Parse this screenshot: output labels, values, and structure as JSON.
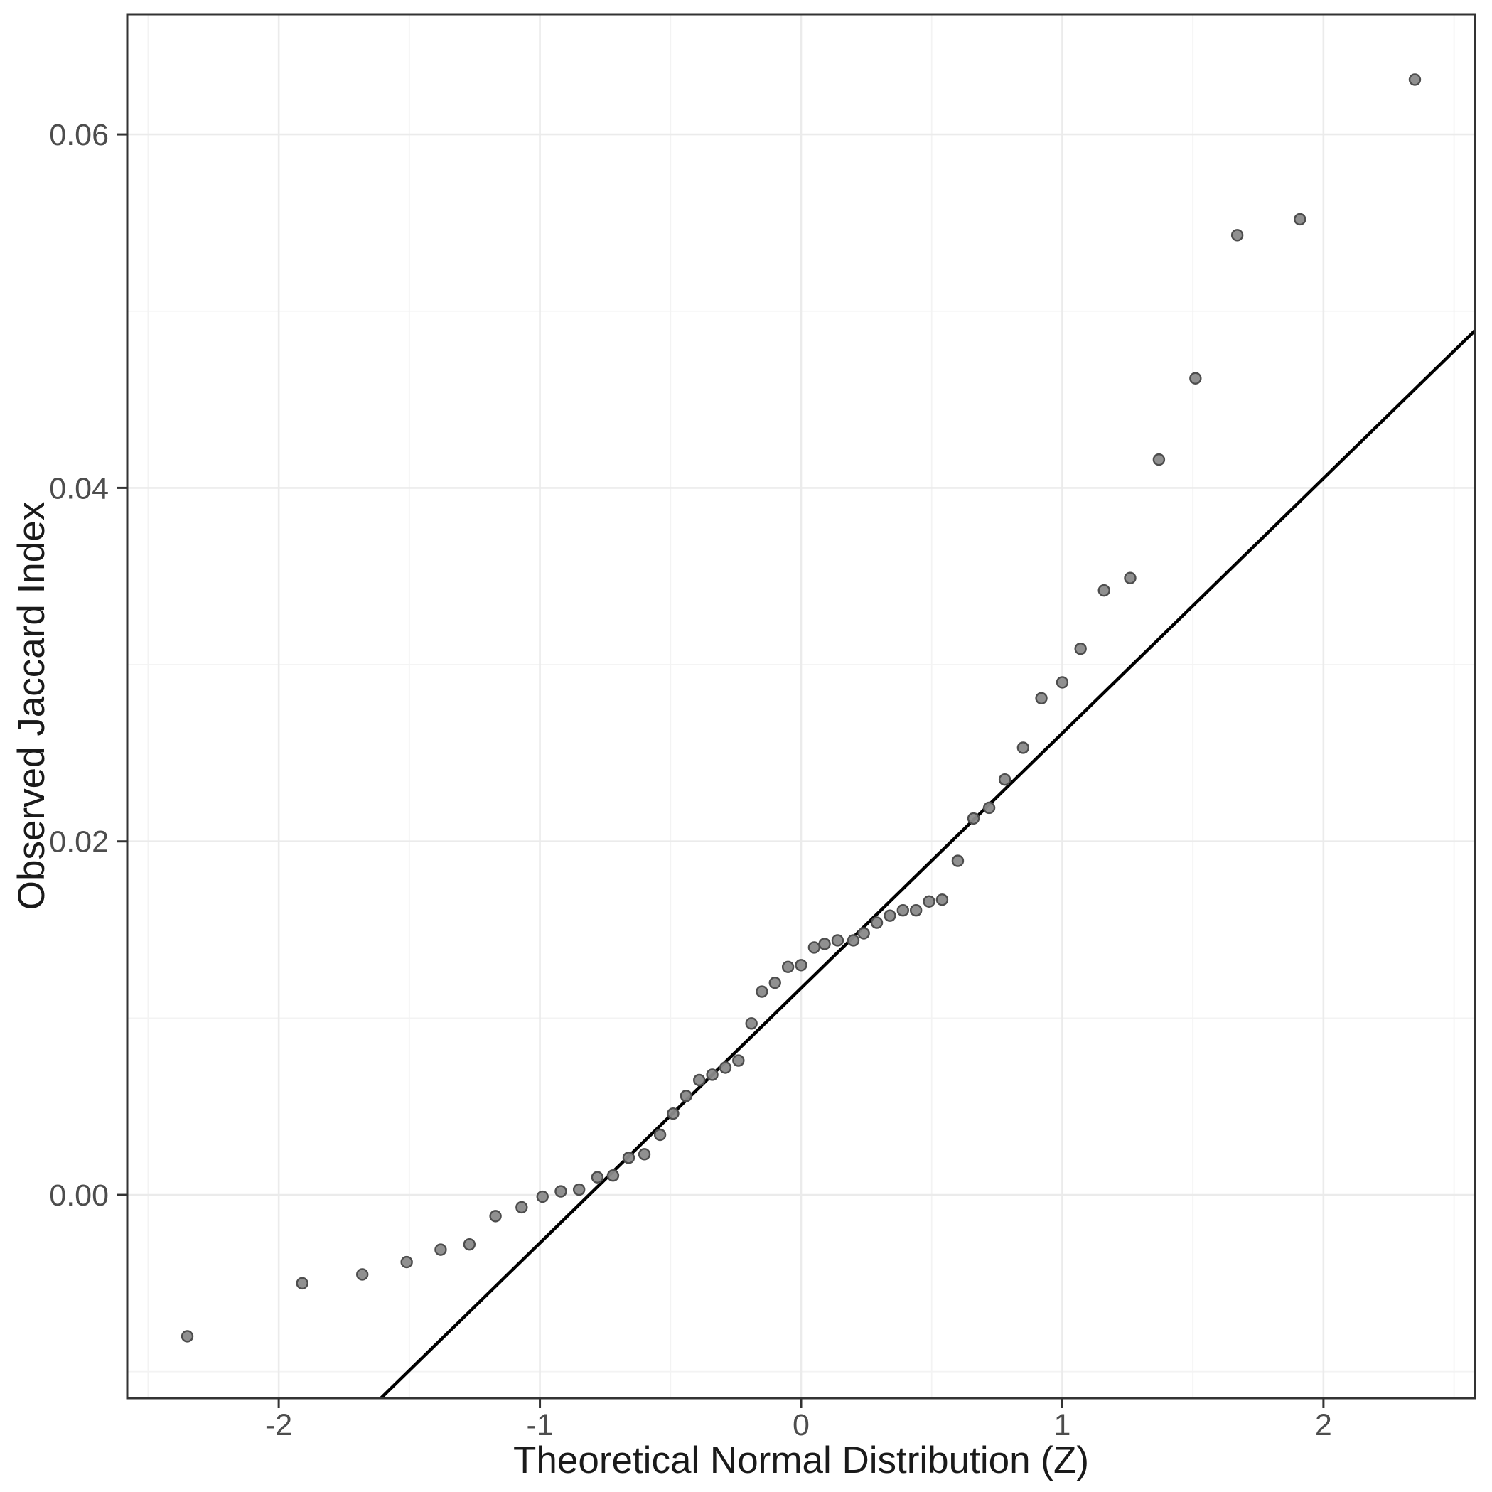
{
  "chart_data": {
    "type": "scatter",
    "title": "",
    "xlabel": "Theoretical Normal Distribution (Z)",
    "ylabel": "Observed Jaccard Index",
    "xlim": [
      -2.58,
      2.58
    ],
    "ylim": [
      -0.0115,
      0.0668
    ],
    "grid": "on",
    "legend": "none",
    "x_ticks": {
      "values": [
        -2,
        -1,
        0,
        1,
        2
      ],
      "labels": [
        "-2",
        "-1",
        "0",
        "1",
        "2"
      ]
    },
    "y_ticks": {
      "values": [
        0.0,
        0.02,
        0.04,
        0.06
      ],
      "labels": [
        "0.00",
        "0.02",
        "0.04",
        "0.06"
      ]
    },
    "x_minor_ticks": [
      -2.5,
      -1.5,
      -0.5,
      0.5,
      1.5,
      2.5
    ],
    "y_minor_ticks": [
      -0.01,
      0.01,
      0.03,
      0.05
    ],
    "series": [
      {
        "name": "observed-vs-theoretical-quantiles",
        "marker": "circle",
        "points": [
          [
            -2.35,
            -0.008
          ],
          [
            -1.91,
            -0.005
          ],
          [
            -1.68,
            -0.0045
          ],
          [
            -1.51,
            -0.0038
          ],
          [
            -1.38,
            -0.0031
          ],
          [
            -1.27,
            -0.0028
          ],
          [
            -1.17,
            -0.0012
          ],
          [
            -1.07,
            -0.0007
          ],
          [
            -0.99,
            -0.0001
          ],
          [
            -0.92,
            0.0002
          ],
          [
            -0.85,
            0.0003
          ],
          [
            -0.78,
            0.001
          ],
          [
            -0.72,
            0.0011
          ],
          [
            -0.66,
            0.0021
          ],
          [
            -0.6,
            0.0023
          ],
          [
            -0.54,
            0.0034
          ],
          [
            -0.49,
            0.0046
          ],
          [
            -0.44,
            0.0056
          ],
          [
            -0.39,
            0.0065
          ],
          [
            -0.34,
            0.0068
          ],
          [
            -0.29,
            0.0072
          ],
          [
            -0.24,
            0.0076
          ],
          [
            -0.19,
            0.0097
          ],
          [
            -0.15,
            0.0115
          ],
          [
            -0.1,
            0.012
          ],
          [
            -0.05,
            0.0129
          ],
          [
            0.0,
            0.013
          ],
          [
            0.05,
            0.014
          ],
          [
            0.09,
            0.0142
          ],
          [
            0.14,
            0.0144
          ],
          [
            0.2,
            0.0144
          ],
          [
            0.24,
            0.0148
          ],
          [
            0.29,
            0.0154
          ],
          [
            0.34,
            0.0158
          ],
          [
            0.39,
            0.0161
          ],
          [
            0.44,
            0.0161
          ],
          [
            0.49,
            0.0166
          ],
          [
            0.54,
            0.0167
          ],
          [
            0.6,
            0.0189
          ],
          [
            0.66,
            0.0213
          ],
          [
            0.72,
            0.0219
          ],
          [
            0.78,
            0.0235
          ],
          [
            0.85,
            0.0253
          ],
          [
            0.92,
            0.0281
          ],
          [
            1.0,
            0.029
          ],
          [
            1.07,
            0.0309
          ],
          [
            1.16,
            0.0342
          ],
          [
            1.26,
            0.0349
          ],
          [
            1.37,
            0.0416
          ],
          [
            1.51,
            0.0462
          ],
          [
            1.67,
            0.0543
          ],
          [
            1.91,
            0.0552
          ],
          [
            2.35,
            0.0631
          ]
        ]
      }
    ],
    "reference_line": {
      "intercept": 0.0117,
      "slope": 0.01442,
      "color": "#000000"
    },
    "style": {
      "background": "#ffffff",
      "panel_background": "#ffffff",
      "grid_major": "#ebebeb",
      "grid_minor": "#f3f3f3",
      "panel_border": "#333333",
      "tick_color": "#333333",
      "tick_label_color": "#4d4d4d",
      "point_fill": "#8a8a8a",
      "point_stroke": "#4d4d4d",
      "point_radius": 7.5,
      "point_stroke_width": 2.4,
      "line_width": 4.5
    }
  }
}
